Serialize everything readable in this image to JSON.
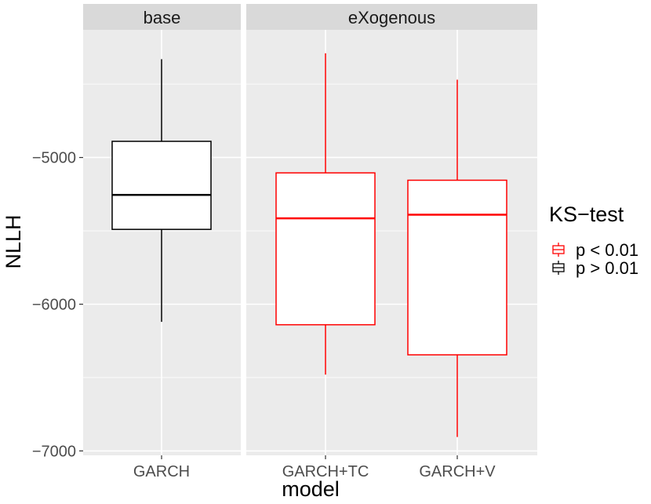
{
  "chart_data": {
    "type": "box",
    "xlabel": "model",
    "ylabel": "NLLH",
    "ylim": [
      -7030,
      -4130
    ],
    "yticks": [
      -7000,
      -6000,
      -5000
    ],
    "ytick_labels": [
      "−7000",
      "−6000",
      "−5000"
    ],
    "grid": true,
    "legend": {
      "title": "KS−test",
      "position": "right",
      "entries": [
        {
          "label": "p < 0.01",
          "color": "#ff0000"
        },
        {
          "label": "p > 0.01",
          "color": "#000000"
        }
      ]
    },
    "facets": [
      {
        "label": "base",
        "boxes": [
          {
            "category": "GARCH",
            "ks": "p > 0.01",
            "color": "#000000",
            "min": -6120,
            "q1": -5490,
            "median": -5255,
            "q3": -4890,
            "max": -4330
          }
        ]
      },
      {
        "label": "eXogenous",
        "boxes": [
          {
            "category": "GARCH+TC",
            "ks": "p < 0.01",
            "color": "#ff0000",
            "min": -6480,
            "q1": -6140,
            "median": -5415,
            "q3": -5105,
            "max": -4290
          },
          {
            "category": "GARCH+V",
            "ks": "p < 0.01",
            "color": "#ff0000",
            "min": -6905,
            "q1": -6345,
            "median": -5390,
            "q3": -5155,
            "max": -4470
          }
        ]
      }
    ]
  }
}
